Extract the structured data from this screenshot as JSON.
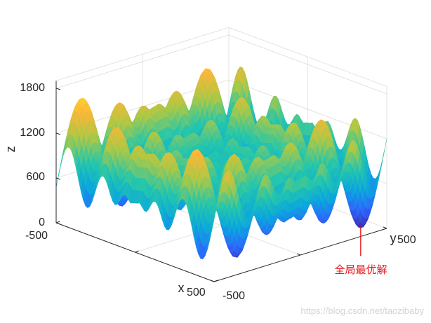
{
  "chart_data": {
    "type": "surface",
    "title": "",
    "xlabel": "x",
    "ylabel": "y",
    "zlabel": "z",
    "x_ticks": [
      "-500",
      "500"
    ],
    "y_ticks": [
      "-500",
      "500"
    ],
    "z_ticks": [
      "0",
      "600",
      "1200",
      "1800"
    ],
    "xlim": [
      -500,
      500
    ],
    "ylim": [
      -500,
      500
    ],
    "zlim": [
      0,
      1900
    ],
    "grid": true,
    "colormap": [
      "#3e26a8",
      "#2e66fe",
      "#0ba7dd",
      "#25c7ab",
      "#aec844",
      "#fbb639",
      "#f9e52a"
    ],
    "annotation": {
      "text": "全局最优解",
      "x": 420.97,
      "y": 420.97,
      "z": 0,
      "color": "#e8141b"
    }
  },
  "watermark": "https://blog.csdn.net/taozibaby"
}
